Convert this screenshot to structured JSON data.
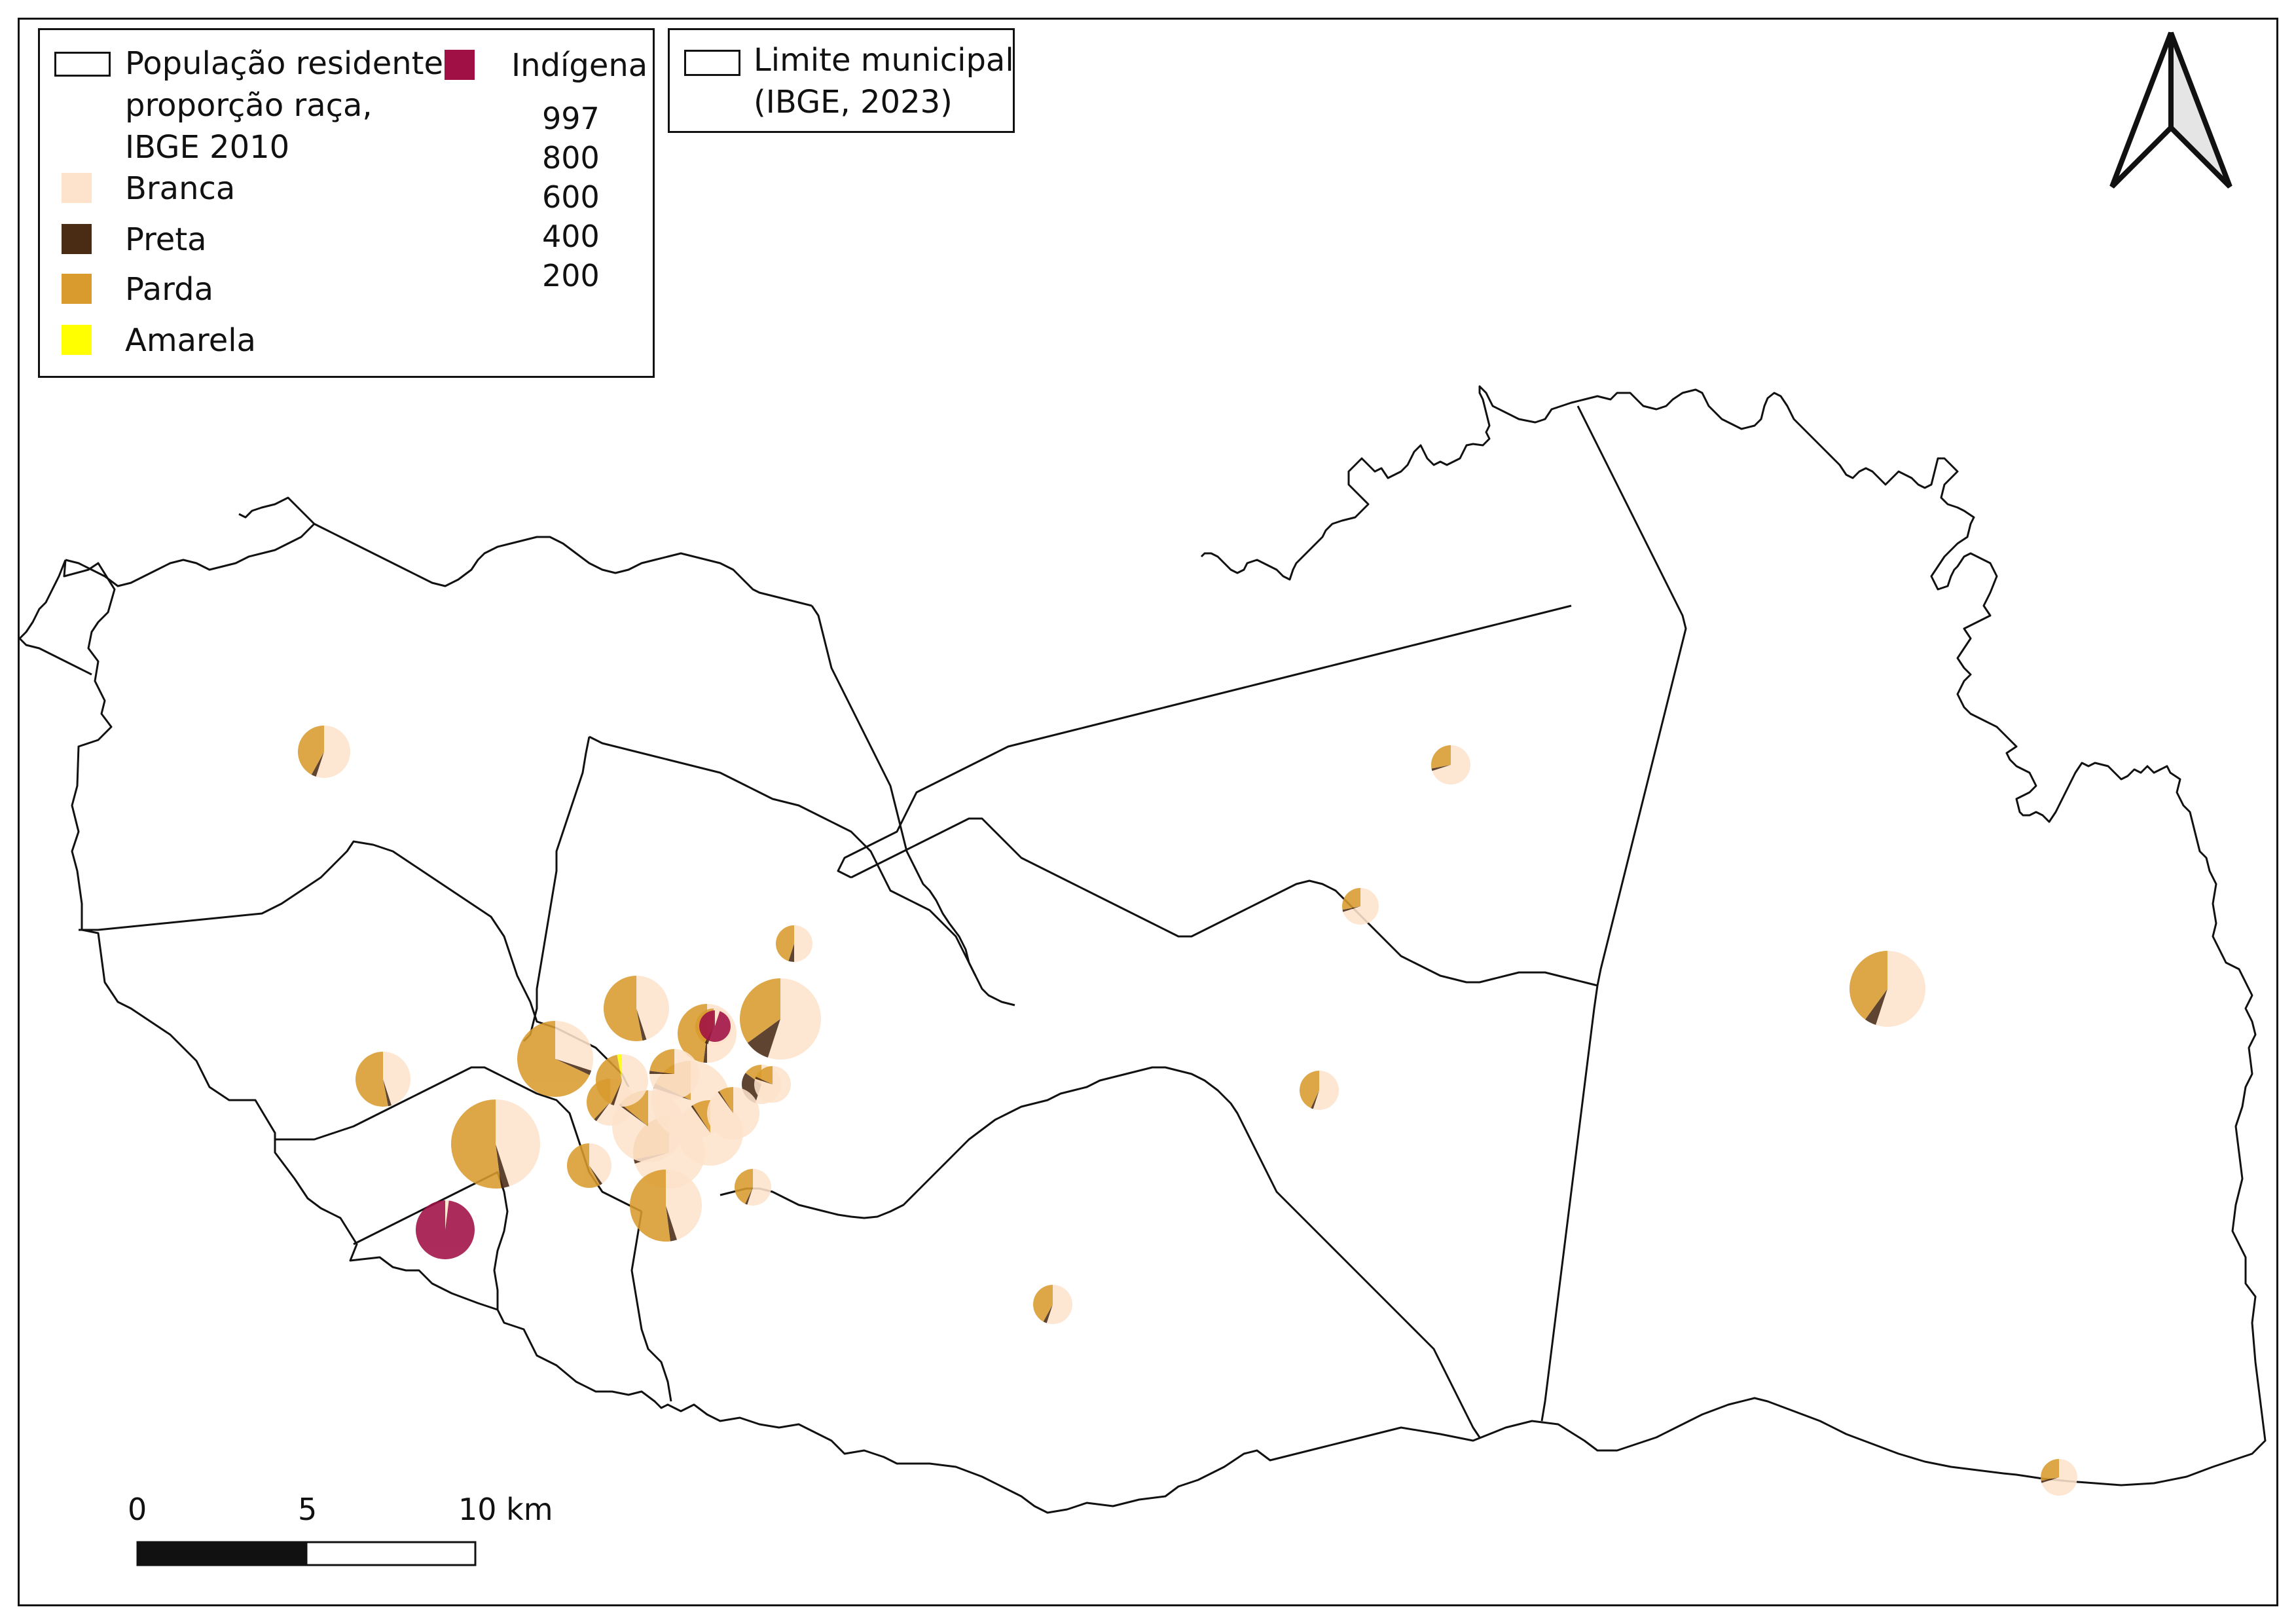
{
  "legend": {
    "title_line1": "População residente",
    "title_line2": "proporção raça,",
    "title_line3": "IBGE 2010",
    "categories": [
      {
        "label": "Branca",
        "color": "#fde3cc"
      },
      {
        "label": "Preta",
        "color": "#4a2c15"
      },
      {
        "label": "Parda",
        "color": "#d99b2e"
      },
      {
        "label": "Amarela",
        "color": "#ffff00"
      },
      {
        "label": "Indígena",
        "color": "#a01045"
      }
    ],
    "size_values": [
      "997",
      "800",
      "600",
      "400",
      "200"
    ],
    "boundary_line1": "Limite municipal",
    "boundary_line2": "(IBGE, 2023)"
  },
  "scale_bar": {
    "labels": [
      "0",
      "5",
      "10 km"
    ]
  },
  "north_arrow": {
    "icon": "north-arrow-icon"
  },
  "colors": {
    "boundary": "#111111",
    "branca": "#fde3cc",
    "preta": "#4a2c15",
    "parda": "#d99b2e",
    "amarela": "#ffff00",
    "indigena": "#a01045"
  }
}
